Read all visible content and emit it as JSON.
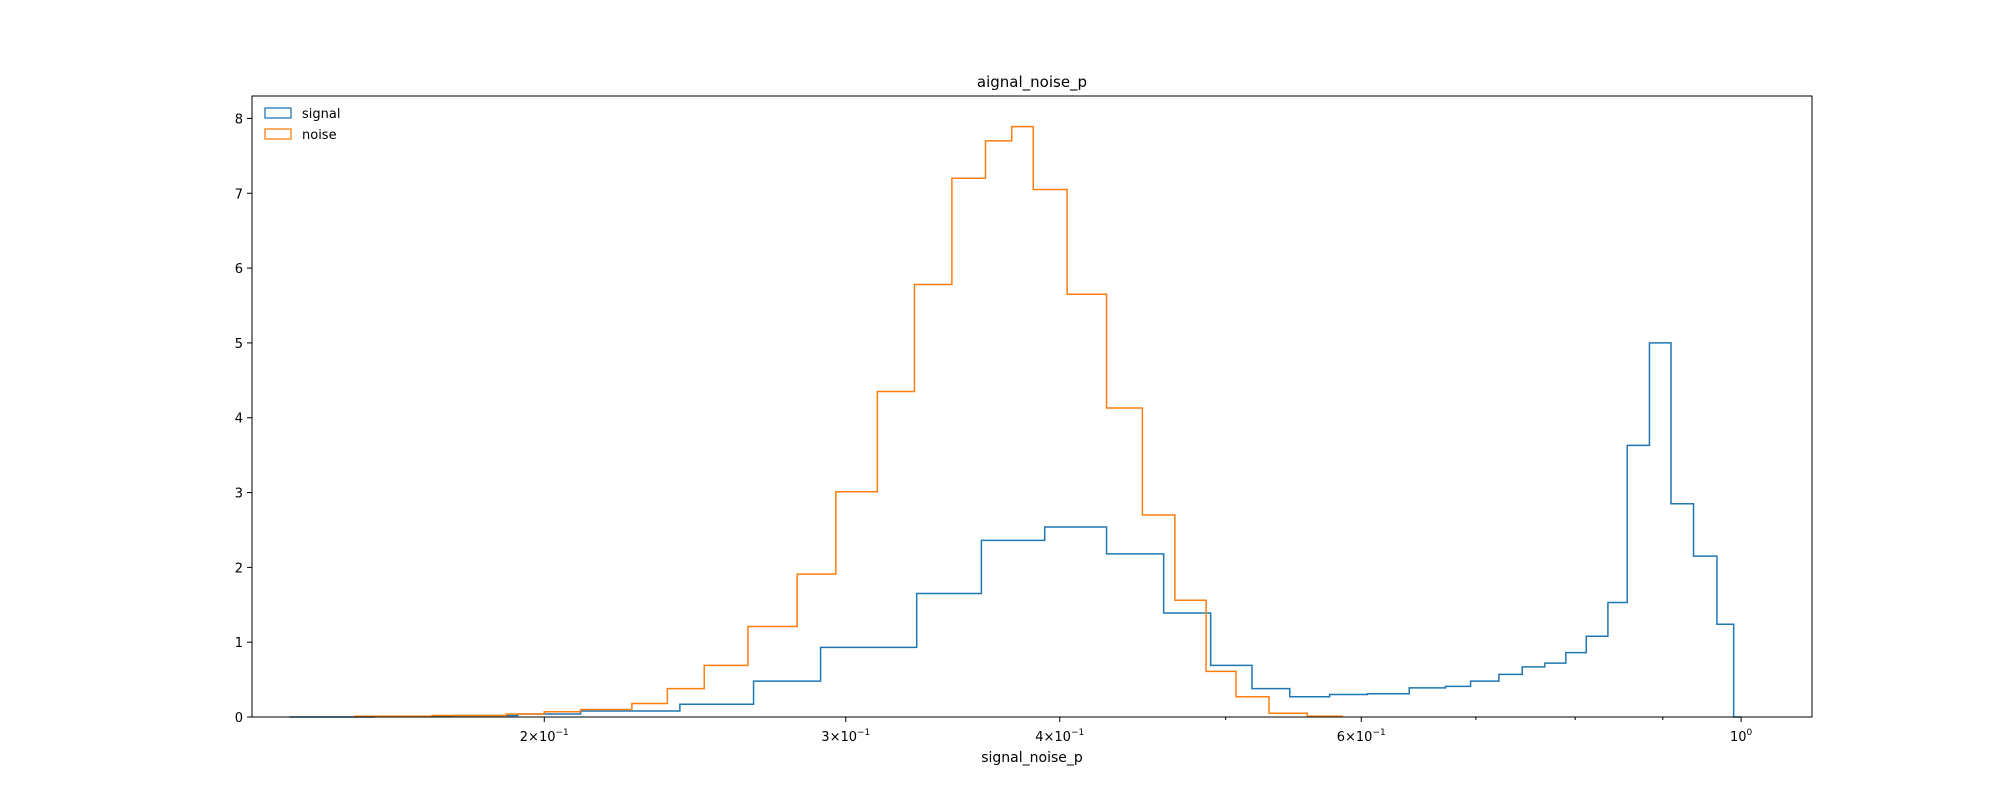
{
  "chart_data": {
    "type": "histogram-step",
    "title": "aignal_noise_p",
    "xlabel": "signal_noise_p",
    "ylabel": "",
    "xscale": "log",
    "xlim": [
      0.135,
      1.1
    ],
    "ylim": [
      0,
      8.3
    ],
    "yticks": [
      0,
      1,
      2,
      3,
      4,
      5,
      6,
      7,
      8
    ],
    "yticklabels": [
      "0",
      "1",
      "2",
      "3",
      "4",
      "5",
      "6",
      "7",
      "8"
    ],
    "xticks": [
      {
        "value": 0.2,
        "mantissa": "2",
        "exponent": "−1"
      },
      {
        "value": 0.3,
        "mantissa": "3",
        "exponent": "−1"
      },
      {
        "value": 0.4,
        "mantissa": "4",
        "exponent": "−1"
      },
      {
        "value": 0.6,
        "mantissa": "6",
        "exponent": "−1"
      },
      {
        "value": 1.0,
        "mantissa": "10",
        "exponent": "0"
      }
    ],
    "minor_xticks": [
      0.5,
      0.7,
      0.8,
      0.9
    ],
    "legend_position": "top-left",
    "series": [
      {
        "name": "signal",
        "color": "#1f77b4",
        "edges": [
          0.142,
          0.159,
          0.177,
          0.193,
          0.21,
          0.24,
          0.265,
          0.29,
          0.33,
          0.36,
          0.392,
          0.426,
          0.46,
          0.49,
          0.518,
          0.545,
          0.575,
          0.605,
          0.64,
          0.672,
          0.695,
          0.722,
          0.745,
          0.768,
          0.79,
          0.812,
          0.836,
          0.858,
          0.884,
          0.91,
          0.938,
          0.968,
          0.99,
          1.0
        ],
        "values": [
          0.0,
          0.01,
          0.02,
          0.04,
          0.08,
          0.17,
          0.48,
          0.93,
          1.65,
          2.36,
          2.54,
          2.18,
          1.39,
          0.69,
          0.38,
          0.27,
          0.3,
          0.31,
          0.39,
          0.41,
          0.48,
          0.57,
          0.67,
          0.72,
          0.86,
          1.08,
          1.53,
          3.63,
          5.0,
          2.85,
          2.15,
          1.24,
          0.0
        ]
      },
      {
        "name": "noise",
        "color": "#ff7f0e",
        "edges": [
          0.155,
          0.172,
          0.19,
          0.2,
          0.21,
          0.225,
          0.236,
          0.248,
          0.263,
          0.281,
          0.296,
          0.313,
          0.329,
          0.346,
          0.362,
          0.375,
          0.386,
          0.404,
          0.426,
          0.447,
          0.467,
          0.487,
          0.507,
          0.53,
          0.558,
          0.585
        ],
        "values": [
          0.01,
          0.02,
          0.04,
          0.07,
          0.1,
          0.18,
          0.38,
          0.69,
          1.21,
          1.91,
          3.01,
          4.35,
          5.78,
          7.2,
          7.7,
          7.89,
          7.05,
          5.65,
          4.13,
          2.7,
          1.56,
          0.61,
          0.27,
          0.05,
          0.01
        ]
      }
    ]
  }
}
